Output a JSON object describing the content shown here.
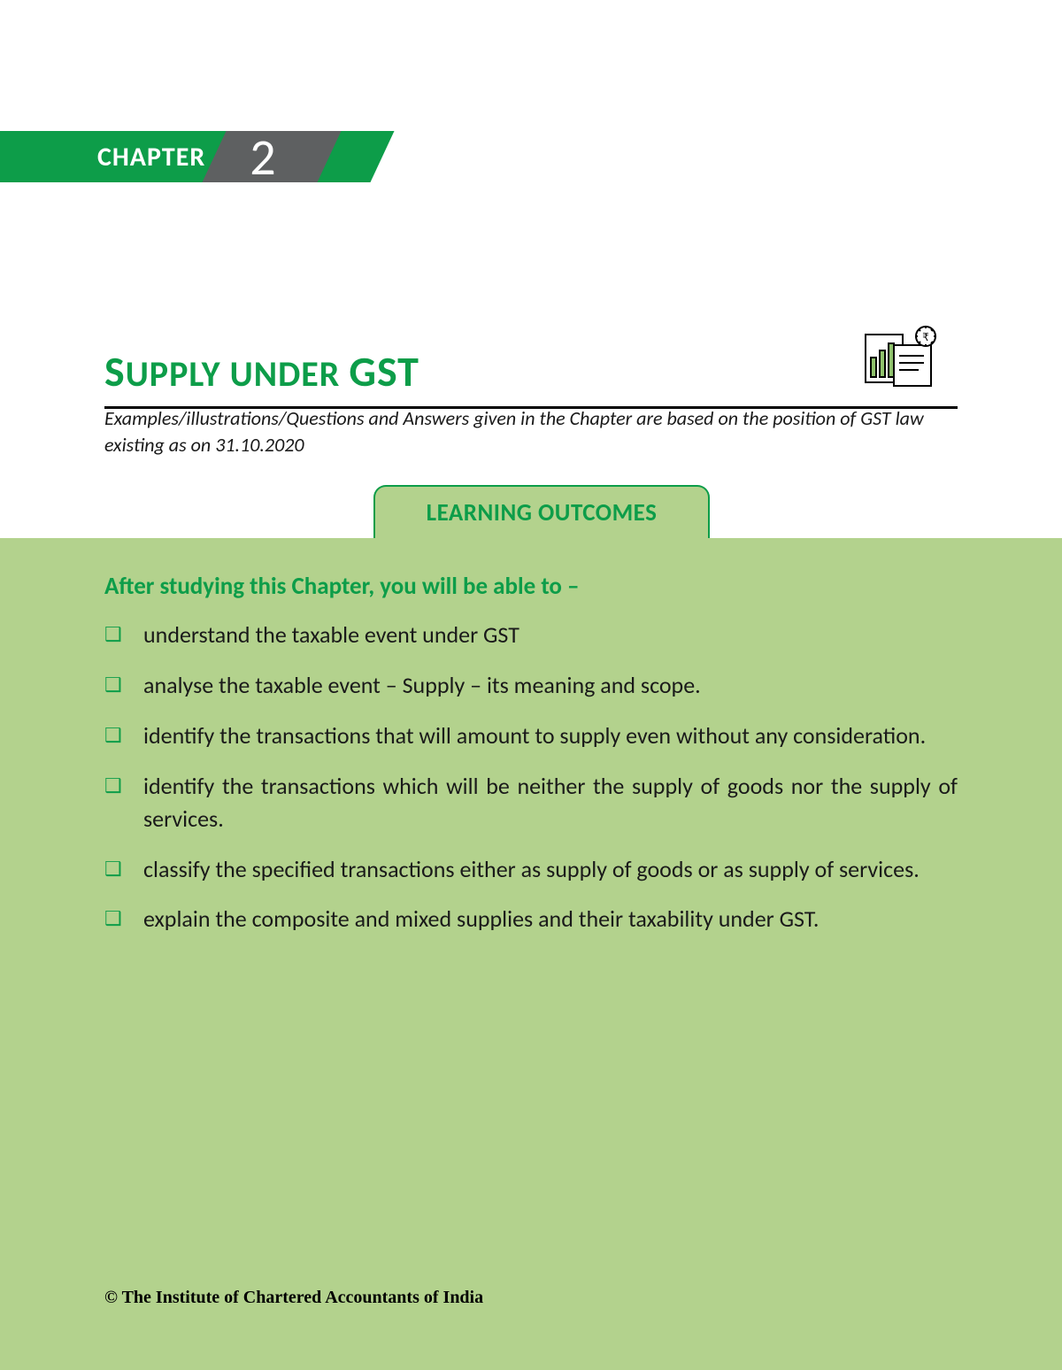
{
  "colors": {
    "brand_green": "#0d9d49",
    "panel_green": "#b3d28d",
    "banner_grey": "#5e6061",
    "text": "#1a1a1a",
    "black": "#000000",
    "white": "#ffffff"
  },
  "chapter": {
    "label": "CHAPTER",
    "number": "2"
  },
  "title": {
    "prefix_cap": "S",
    "prefix_rest": "UPPLY UNDER ",
    "suffix": "GST"
  },
  "notice": "Examples/illustrations/Questions and Answers given in the Chapter are based on the position of GST law existing as on 31.10.2020",
  "outcomes": {
    "tab_label": "LEARNING OUTCOMES",
    "intro": "After studying this Chapter, you will be able to –",
    "items": [
      "understand the taxable event under GST",
      "analyse the taxable event – Supply – its meaning and scope.",
      "identify the transactions that will amount to supply even without any consideration.",
      "identify the transactions which will be neither the supply of goods nor the supply of services.",
      "classify the specified transactions either as supply of goods or as supply of services.",
      "explain the composite and mixed supplies and their taxability under GST."
    ]
  },
  "copyright": "© The Institute of Chartered Accountants of India"
}
